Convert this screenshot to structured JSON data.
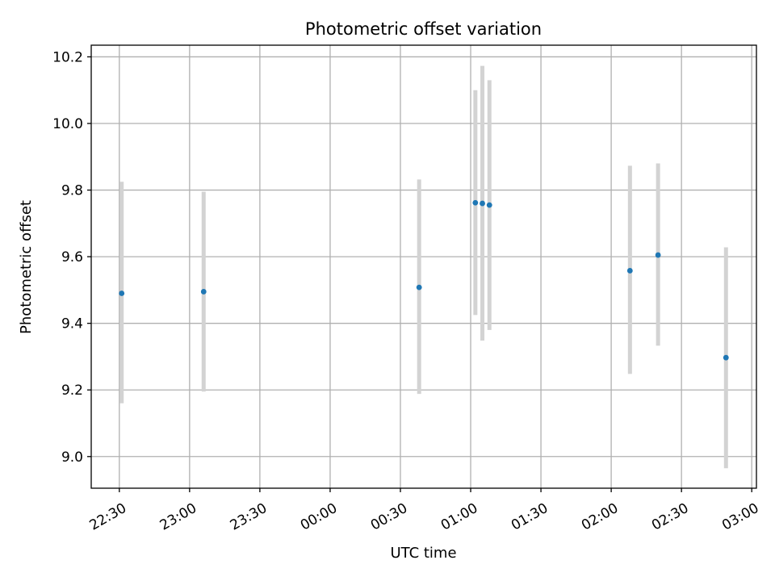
{
  "chart_data": {
    "type": "scatter",
    "title": "Photometric offset variation",
    "xlabel": "UTC time",
    "ylabel": "Photometric offset",
    "x_unit": "UTC time (HH:MM), spanning midnight",
    "xlim": [
      "22:18",
      "03:02"
    ],
    "ylim": [
      8.905,
      10.235
    ],
    "x_ticks": [
      "22:30",
      "23:00",
      "23:30",
      "00:00",
      "00:30",
      "01:00",
      "01:30",
      "02:00",
      "02:30",
      "03:00"
    ],
    "y_ticks": [
      "9.0",
      "9.2",
      "9.4",
      "9.6",
      "9.8",
      "10.0",
      "10.2"
    ],
    "grid": true,
    "marker_color": "#1f77b4",
    "errorbar_color": "#d3d3d3",
    "points": [
      {
        "x": "22:31",
        "y": 9.49,
        "yerr_low": 9.16,
        "yerr_high": 9.825
      },
      {
        "x": "23:06",
        "y": 9.495,
        "yerr_low": 9.195,
        "yerr_high": 9.795
      },
      {
        "x": "00:38",
        "y": 9.508,
        "yerr_low": 9.188,
        "yerr_high": 9.832
      },
      {
        "x": "01:02",
        "y": 9.762,
        "yerr_low": 9.425,
        "yerr_high": 10.1
      },
      {
        "x": "01:05",
        "y": 9.76,
        "yerr_low": 9.348,
        "yerr_high": 10.173
      },
      {
        "x": "01:08",
        "y": 9.755,
        "yerr_low": 9.38,
        "yerr_high": 10.13
      },
      {
        "x": "02:08",
        "y": 9.558,
        "yerr_low": 9.248,
        "yerr_high": 9.873
      },
      {
        "x": "02:20",
        "y": 9.605,
        "yerr_low": 9.333,
        "yerr_high": 9.88
      },
      {
        "x": "02:49",
        "y": 9.297,
        "yerr_low": 8.965,
        "yerr_high": 9.628
      }
    ]
  }
}
